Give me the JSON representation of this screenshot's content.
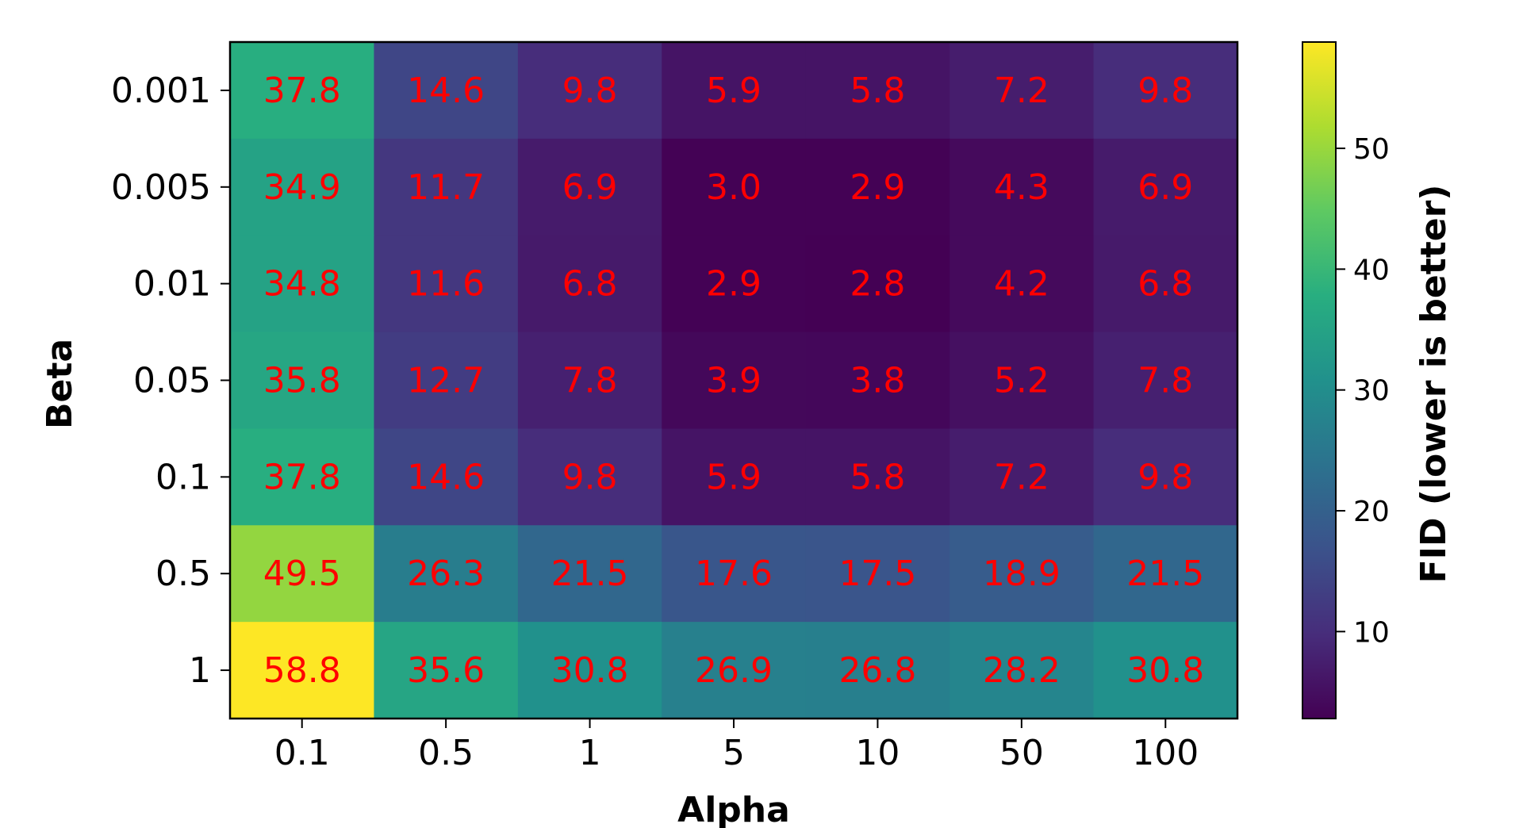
{
  "chart_data": {
    "type": "heatmap",
    "title": "",
    "xlabel": "Alpha",
    "ylabel": "Beta",
    "x_categories": [
      "0.1",
      "0.5",
      "1",
      "5",
      "10",
      "50",
      "100"
    ],
    "y_categories": [
      "0.001",
      "0.005",
      "0.01",
      "0.05",
      "0.1",
      "0.5",
      "1"
    ],
    "values": [
      [
        37.8,
        14.6,
        9.8,
        5.9,
        5.8,
        7.2,
        9.8
      ],
      [
        34.9,
        11.7,
        6.9,
        3.0,
        2.9,
        4.3,
        6.9
      ],
      [
        34.8,
        11.6,
        6.8,
        2.9,
        2.8,
        4.2,
        6.8
      ],
      [
        35.8,
        12.7,
        7.8,
        3.9,
        3.8,
        5.2,
        7.8
      ],
      [
        37.8,
        14.6,
        9.8,
        5.9,
        5.8,
        7.2,
        9.8
      ],
      [
        49.5,
        26.3,
        21.5,
        17.6,
        17.5,
        18.9,
        21.5
      ],
      [
        58.8,
        35.6,
        30.8,
        26.9,
        26.8,
        28.2,
        30.8
      ]
    ],
    "value_labels": [
      [
        "37.8",
        "14.6",
        "9.8",
        "5.9",
        "5.8",
        "7.2",
        "9.8"
      ],
      [
        "34.9",
        "11.7",
        "6.9",
        "3.0",
        "2.9",
        "4.3",
        "6.9"
      ],
      [
        "34.8",
        "11.6",
        "6.8",
        "2.9",
        "2.8",
        "4.2",
        "6.8"
      ],
      [
        "35.8",
        "12.7",
        "7.8",
        "3.9",
        "3.8",
        "5.2",
        "7.8"
      ],
      [
        "37.8",
        "14.6",
        "9.8",
        "5.9",
        "5.8",
        "7.2",
        "9.8"
      ],
      [
        "49.5",
        "26.3",
        "21.5",
        "17.6",
        "17.5",
        "18.9",
        "21.5"
      ],
      [
        "58.8",
        "35.6",
        "30.8",
        "26.9",
        "26.8",
        "28.2",
        "30.8"
      ]
    ],
    "colormap": "viridis",
    "color_range": [
      2.8,
      58.8
    ],
    "colorbar": {
      "label": "FID (lower is better)",
      "ticks": [
        10,
        20,
        30,
        40,
        50
      ],
      "tick_labels": [
        "10",
        "20",
        "30",
        "40",
        "50"
      ]
    },
    "cell_label_color": "#ff0000",
    "grid": false
  }
}
